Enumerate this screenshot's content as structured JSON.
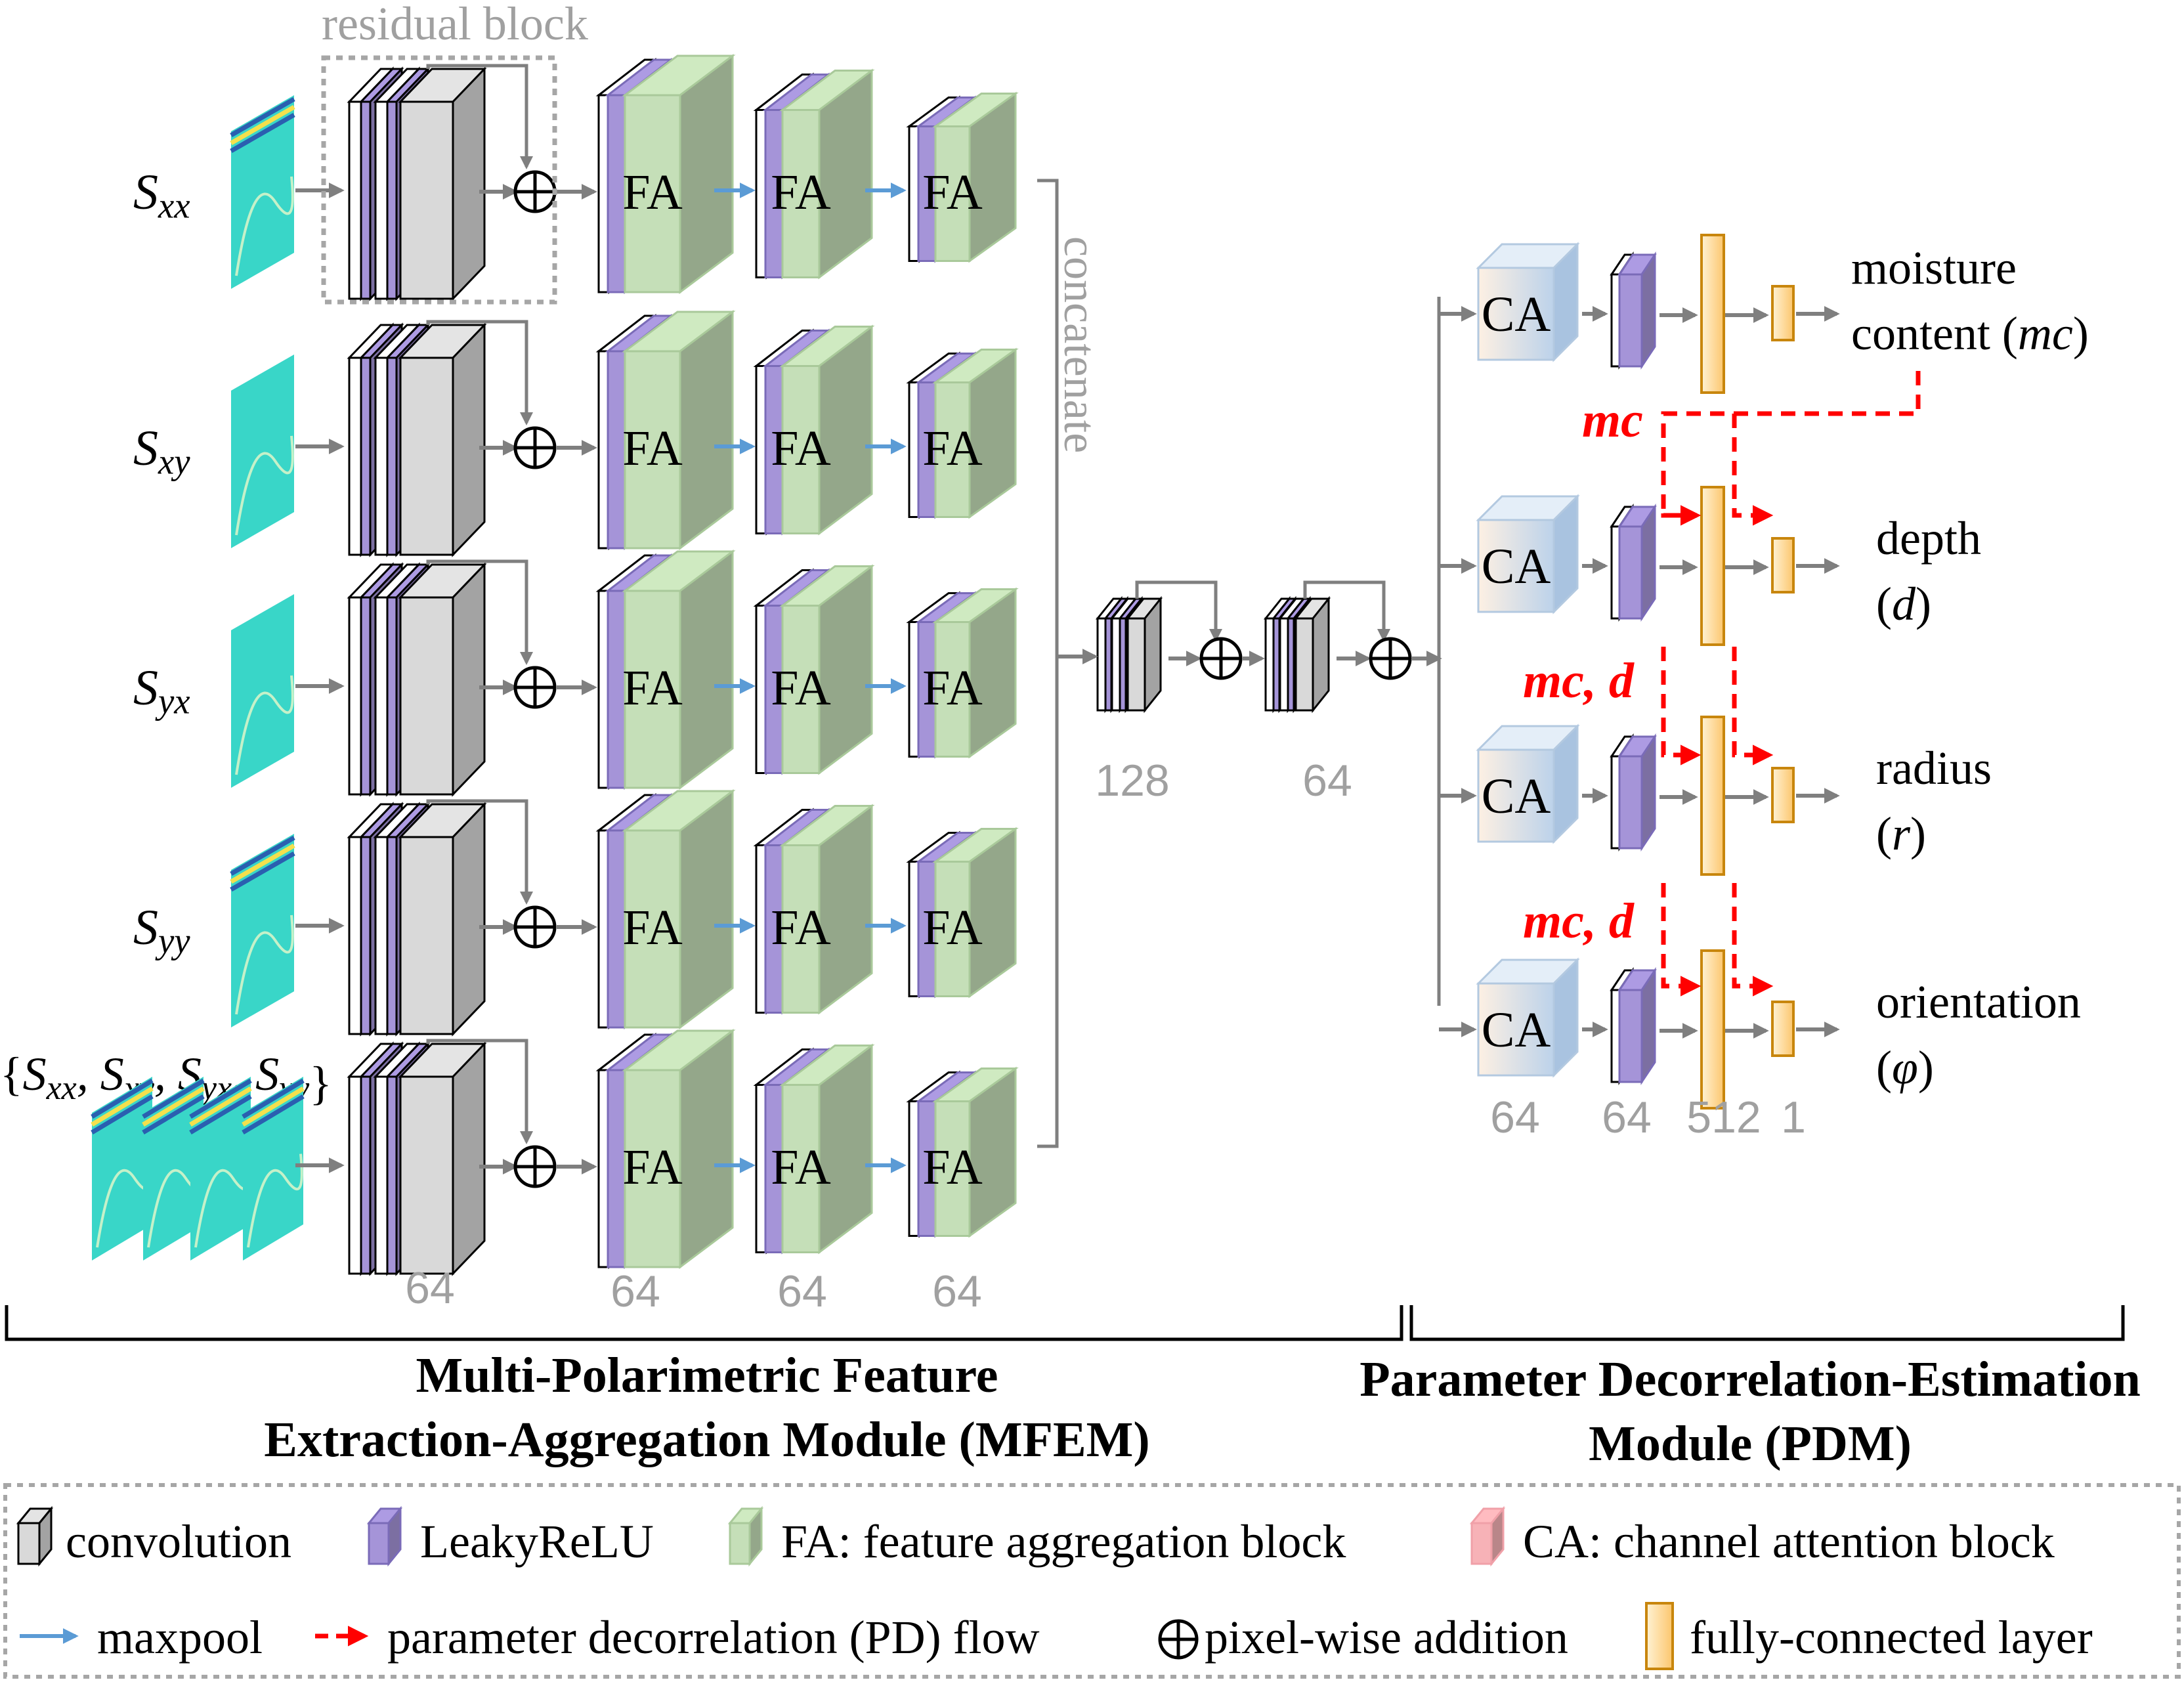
{
  "inputs": {
    "sxx": {
      "base": "S",
      "sub": "xx"
    },
    "sxy": {
      "base": "S",
      "sub": "xy"
    },
    "syx": {
      "base": "S",
      "sub": "yx"
    },
    "syy": {
      "base": "S",
      "sub": "yy"
    },
    "set": {
      "open": "{",
      "items": [
        [
          "S",
          "xx"
        ],
        [
          "S",
          "xy"
        ],
        [
          "S",
          "yx"
        ],
        [
          "S",
          "yy"
        ]
      ],
      "close": "}"
    }
  },
  "residual_block_label": "residual block",
  "fa_label": "FA",
  "concatenate_label": "concatenate",
  "ca_label": "CA",
  "channel_counts": {
    "res_block": "64",
    "fa1": "64",
    "fa2": "64",
    "fa3": "64",
    "merge1": "128",
    "merge2": "64",
    "pdm": [
      "64",
      "64",
      "512",
      "1"
    ]
  },
  "outputs": [
    {
      "line1": "moisture",
      "line2": "content (",
      "line2_var": "mc",
      "line2_end": ")"
    },
    {
      "line1": "depth",
      "line2": "(",
      "line2_var": "d",
      "line2_end": ")"
    },
    {
      "line1": "radius",
      "line2": "(",
      "line2_var": "r",
      "line2_end": ")"
    },
    {
      "line1": "orientation",
      "line2": "(",
      "line2_var": "φ",
      "line2_end": ")"
    }
  ],
  "pd_labels": [
    "mc",
    "mc, d",
    "mc, d"
  ],
  "modules": {
    "mfem_line1": "Multi-Polarimetric Feature",
    "mfem_line2": "Extraction-Aggregation Module (MFEM)",
    "pdm_line1": "Parameter Decorrelation-Estimation",
    "pdm_line2": "Module (PDM)"
  },
  "legend": {
    "convolution": "convolution",
    "leakyrelu": "LeakyReLU",
    "fa": "FA: feature aggregation block",
    "ca": "CA: channel attention block",
    "maxpool": "maxpool",
    "pd_flow": "parameter decorrelation (PD) flow",
    "addition": "pixel-wise addition",
    "fc": "fully-connected layer"
  },
  "colors": {
    "arrow": "#7f7f7f",
    "maxpool": "#5b9bd5",
    "pd": "#ff0000",
    "leakyrelu": "#a594d8",
    "fa": "#c5dfb8",
    "fc": "#fcd38a",
    "ca": "#d5e4f2",
    "input": "#39d6c8"
  }
}
